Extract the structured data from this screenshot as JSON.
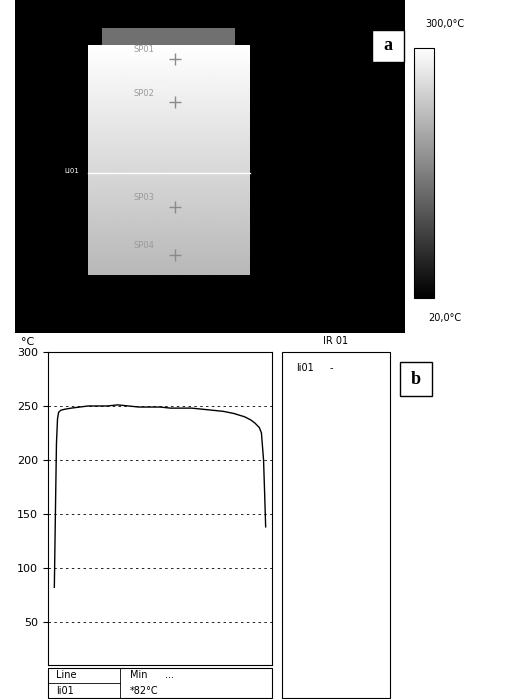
{
  "thermal_image": {
    "panel_label": "a",
    "spots": [
      "SP01",
      "SP02",
      "SP03",
      "SP04"
    ],
    "line_label": "LI01",
    "colorbar": {
      "range": [
        20,
        300
      ],
      "ticks": [
        {
          "value": 300,
          "label": "300,0°C"
        },
        {
          "value": 20,
          "label": "20,0°C"
        }
      ]
    }
  },
  "chart_data": {
    "type": "line",
    "panel_label": "b",
    "y_label": "°C",
    "x": [
      0,
      0.5,
      1,
      1.5,
      2,
      3,
      5,
      8,
      12,
      16,
      20,
      25,
      30,
      35,
      40,
      45,
      50,
      55,
      60,
      65,
      70,
      75,
      80,
      85,
      90,
      93,
      95,
      97,
      98,
      99,
      99.5,
      100
    ],
    "series": [
      {
        "color": "#000000",
        "values": [
          82,
          150,
          215,
          238,
          244,
          246,
          247,
          248,
          249,
          250,
          250,
          250,
          251,
          250,
          249,
          249,
          249,
          248,
          248,
          248,
          247,
          246,
          245,
          243,
          240,
          237,
          234,
          230,
          225,
          200,
          170,
          138
        ]
      }
    ],
    "xlim": [
      -3,
      103
    ],
    "ylim": [
      10,
      300
    ],
    "yticks": [
      50,
      100,
      150,
      200,
      250,
      300
    ],
    "grid": true,
    "tick_labels": "y"
  },
  "side_panel": {
    "title": "IR 01",
    "rows": [
      [
        "li01",
        "-"
      ]
    ]
  },
  "stats_table": {
    "columns": [
      "Line",
      "Min",
      "..."
    ],
    "rows": [
      [
        "li01",
        "*82°C"
      ]
    ]
  }
}
